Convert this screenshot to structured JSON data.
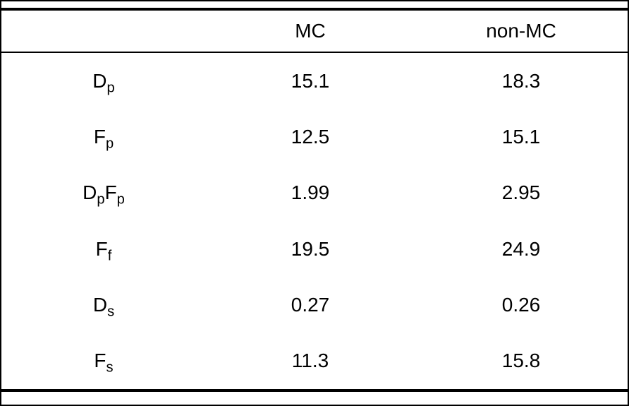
{
  "table": {
    "header": {
      "col1": "",
      "col2": "MC",
      "col3": "non-MC"
    },
    "rows": [
      {
        "label": [
          {
            "t": "D",
            "sub": false
          },
          {
            "t": "p",
            "sub": true
          }
        ],
        "mc": "15.1",
        "non_mc": "18.3"
      },
      {
        "label": [
          {
            "t": "F",
            "sub": false
          },
          {
            "t": "p",
            "sub": true
          }
        ],
        "mc": "12.5",
        "non_mc": "15.1"
      },
      {
        "label": [
          {
            "t": "D",
            "sub": false
          },
          {
            "t": "p",
            "sub": true
          },
          {
            "t": "F",
            "sub": false
          },
          {
            "t": "p",
            "sub": true
          }
        ],
        "mc": "1.99",
        "non_mc": "2.95"
      },
      {
        "label": [
          {
            "t": "F",
            "sub": false
          },
          {
            "t": "f",
            "sub": true
          }
        ],
        "mc": "19.5",
        "non_mc": "24.9"
      },
      {
        "label": [
          {
            "t": "D",
            "sub": false
          },
          {
            "t": "s",
            "sub": true
          }
        ],
        "mc": "0.27",
        "non_mc": "0.26"
      },
      {
        "label": [
          {
            "t": "F",
            "sub": false
          },
          {
            "t": "s",
            "sub": true
          }
        ],
        "mc": "11.3",
        "non_mc": "15.8"
      }
    ]
  },
  "colors": {
    "rule": "#000000",
    "background": "#ffffff",
    "text": "#000000"
  }
}
